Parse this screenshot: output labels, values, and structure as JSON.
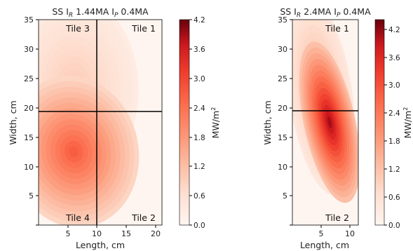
{
  "chart_data": [
    {
      "type": "contour",
      "title_parts": [
        "SS I",
        "R",
        " 1.44MA I",
        "P",
        " 0.4MA"
      ],
      "xlabel": "Length, cm",
      "ylabel": "Width, cm",
      "xlim": [
        0,
        21
      ],
      "ylim": [
        0,
        35
      ],
      "xticks": [
        "5",
        "10",
        "15",
        "20"
      ],
      "yticks": [
        "5",
        "10",
        "15",
        "20",
        "25",
        "30",
        "35"
      ],
      "divider_x": 10,
      "divider_y": 19.5,
      "tile_labels": [
        "Tile 3",
        "Tile 1",
        "Tile 4",
        "Tile 2"
      ],
      "colorbar": {
        "label": "MW/m²",
        "label_parts": [
          "MW/m",
          "2"
        ],
        "min": 0.0,
        "max": 4.2,
        "ticks": [
          "0.0",
          "0.6",
          "1.2",
          "1.8",
          "2.4",
          "3.0",
          "3.6",
          "4.2"
        ],
        "colormap": "Reds"
      },
      "peak": {
        "x": 6,
        "y": 12.5,
        "value": 2.7
      }
    },
    {
      "type": "contour",
      "title_parts": [
        "SS I",
        "R",
        " 2.4MA I",
        "P",
        " 0.4MA"
      ],
      "xlabel": "Length, cm",
      "ylabel": "Width, cm",
      "xlim": [
        0,
        11.5
      ],
      "ylim": [
        0,
        35
      ],
      "xticks": [
        "5",
        "10"
      ],
      "yticks": [
        "5",
        "10",
        "15",
        "20",
        "25",
        "30",
        "35"
      ],
      "divider_y": 19.5,
      "tile_labels": [
        "Tile 1",
        "Tile 2"
      ],
      "colorbar": {
        "label": "MW/m²",
        "label_parts": [
          "MW/m",
          "2"
        ],
        "min": 0.0,
        "max": 4.2,
        "ticks": [
          "0.0",
          "0.6",
          "1.2",
          "1.8",
          "2.4",
          "3.0",
          "3.6",
          "4.2"
        ],
        "colormap": "Reds"
      },
      "peak": {
        "x": 6.5,
        "y": 17.5,
        "value": 3.9
      }
    }
  ]
}
